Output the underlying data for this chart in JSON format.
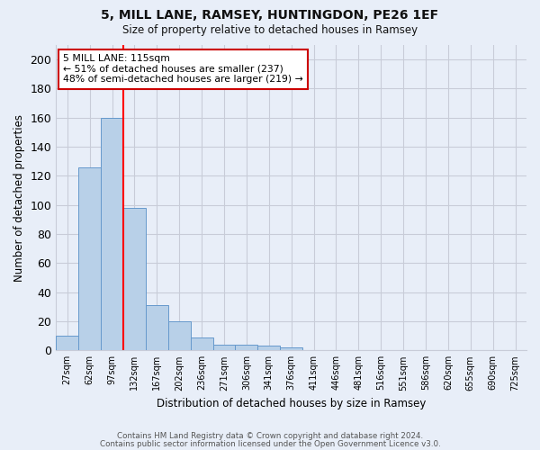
{
  "title1": "5, MILL LANE, RAMSEY, HUNTINGDON, PE26 1EF",
  "title2": "Size of property relative to detached houses in Ramsey",
  "xlabel": "Distribution of detached houses by size in Ramsey",
  "ylabel": "Number of detached properties",
  "categories": [
    "27sqm",
    "62sqm",
    "97sqm",
    "132sqm",
    "167sqm",
    "202sqm",
    "236sqm",
    "271sqm",
    "306sqm",
    "341sqm",
    "376sqm",
    "411sqm",
    "446sqm",
    "481sqm",
    "516sqm",
    "551sqm",
    "586sqm",
    "620sqm",
    "655sqm",
    "690sqm",
    "725sqm"
  ],
  "values": [
    10,
    126,
    160,
    98,
    31,
    20,
    9,
    4,
    4,
    3,
    2,
    0,
    0,
    0,
    0,
    0,
    0,
    0,
    0,
    0,
    0
  ],
  "bar_color": "#b8d0e8",
  "bar_edge_color": "#6699cc",
  "bg_color": "#e8eef8",
  "grid_color": "#c8ccd8",
  "annotation_text": "5 MILL LANE: 115sqm\n← 51% of detached houses are smaller (237)\n48% of semi-detached houses are larger (219) →",
  "annotation_box_color": "#ffffff",
  "annotation_border_color": "#cc0000",
  "ylim": [
    0,
    210
  ],
  "yticks": [
    0,
    20,
    40,
    60,
    80,
    100,
    120,
    140,
    160,
    180,
    200
  ],
  "footnote1": "Contains HM Land Registry data © Crown copyright and database right 2024.",
  "footnote2": "Contains public sector information licensed under the Open Government Licence v3.0."
}
